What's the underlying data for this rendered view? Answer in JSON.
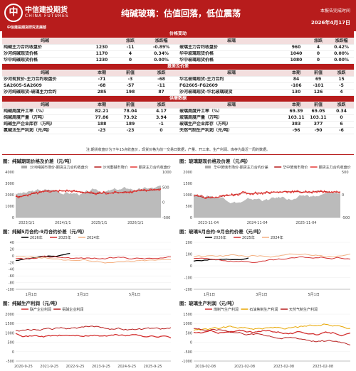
{
  "header": {
    "logo": "中",
    "company": "中信建投期货",
    "company_en": "CHINA FUTURES",
    "subtitle": "中信建投期货研究发展部",
    "title": "纯碱玻璃：估值回落，低位震荡",
    "source": "本报告完成时间",
    "date": "2026年4月17日"
  },
  "sections": [
    "价格变动",
    "基差及价差",
    "供需数据"
  ],
  "price_head": [
    "纯碱",
    "",
    "涨跌",
    "涨跌幅",
    "玻璃",
    "",
    "涨跌",
    "涨跌幅"
  ],
  "price_rows": [
    [
      "纯碱主力合约收盘价",
      "1230",
      "-11",
      "-0.89%",
      "玻璃主力合约收盘价",
      "960",
      "4",
      "0.42%"
    ],
    [
      "沙河纯碱现货价格",
      "1170",
      "4",
      "0.34%",
      "华中玻璃现货价格",
      "1040",
      "0",
      "0.00%"
    ],
    [
      "华中纯碱现货价格",
      "1230",
      "0",
      "0.00%",
      "华中玻璃现货价格",
      "1080",
      "0",
      "0.00%"
    ]
  ],
  "basis_head": [
    "纯碱",
    "本期",
    "前值",
    "涨跌",
    "玻璃",
    "本期",
    "前值",
    "涨跌"
  ],
  "basis_rows": [
    [
      "沙河现货价-主力合约收盘价",
      "-71",
      "-3",
      "-68",
      "华北玻璃现货-主力合约",
      "84",
      "69",
      "15"
    ],
    [
      "SA2605-SA2609",
      "-68",
      "-57",
      "-11",
      "FG2605-FG2609",
      "-106",
      "-101",
      "-5"
    ],
    [
      "沙河纯碱现货-玻璃主力合约",
      "285",
      "198",
      "87",
      "沙河玻璃现货-华北玻璃现货",
      "130",
      "126",
      "4"
    ]
  ],
  "supply_head": [
    "纯碱",
    "本期",
    "前值",
    "涨跌",
    "玻璃",
    "本期",
    "前值",
    "涨跌"
  ],
  "supply_rows": [
    [
      "纯碱周度开工率（%）",
      "82.21",
      "78.04",
      "4.17",
      "玻璃周度开工率（%）",
      "69.39",
      "69.05",
      "0.34"
    ],
    [
      "纯碱周度产量（万吨）",
      "77.86",
      "73.92",
      "3.94",
      "玻璃周度产量（万吨）",
      "103.11",
      "103.11",
      "0"
    ],
    [
      "纯碱生产企业库存（万吨）",
      "188",
      "189",
      "-1",
      "玻璃生产企业库存（万吨）",
      "383",
      "377",
      "6"
    ],
    [
      "氨碱法生产利润（元/吨）",
      "-23",
      "-23",
      "0",
      "天然气制生产利润（元/吨）",
      "-96",
      "-90",
      "-6"
    ]
  ],
  "note": "注:期货收盘价为下午15点收盘价，现货价格为前一交易日数据，产量、开工率、生产利润、库存为最近一周的数据。",
  "chart_titles": [
    "图：纯碱期现价格及价差（元/吨）",
    "图：玻璃期现价格及价差（元/吨）",
    "图：纯碱5月合约-9月合约价差（元/吨）",
    "图：玻璃5月合约-9月合约价差（元/吨）",
    "图：纯碱生产利润（元/吨）",
    "图：玻璃生产利润（元/吨）"
  ],
  "chart_data": [
    {
      "type": "area",
      "legend": [
        "沙河纯碱市场价-期货主力合约收盘价",
        "沙河重碱市场价",
        "期货主力合约收盘价"
      ],
      "x_ticks": [
        "2023/1/1",
        "2024/1/1",
        "2025/1/1",
        "2026/1/1"
      ],
      "y_left": [
        "4000",
        "3000",
        "2000",
        "1000",
        "0"
      ],
      "y_right": [
        "1000",
        "500",
        "0",
        "-500"
      ],
      "colors": [
        "#aaaaaa",
        "#b71c1c",
        "#e53935"
      ]
    },
    {
      "type": "area",
      "legend": [
        "华中玻璃市场价-期货主力合约价差",
        "华中玻璃市场价",
        "期货主力合约收盘价"
      ],
      "x_ticks": [
        "2023-11-04",
        "2024-11-04",
        "2025-11-04"
      ],
      "y_left": [
        "2000",
        "1500",
        "1000",
        "500",
        "0"
      ],
      "y_right": [
        "500",
        "0",
        "-500"
      ],
      "colors": [
        "#aaaaaa",
        "#b71c1c",
        "#e53935"
      ]
    },
    {
      "type": "line",
      "legend": [
        "2026年",
        "2025年",
        "2024年"
      ],
      "x_ticks": [
        "1月1日",
        "3月1日",
        "5月1日"
      ],
      "y": [
        "40",
        "20",
        "0",
        "-20",
        "-40",
        "-60",
        "-80",
        "-100"
      ],
      "colors": [
        "#000000",
        "#d32f2f",
        "#f4b183"
      ]
    },
    {
      "type": "line",
      "legend": [
        "2026年",
        "2025年",
        "2024年"
      ],
      "x_ticks": [
        "1月1日",
        "3月1日",
        "5月1日"
      ],
      "y": [
        "200",
        "100",
        "0",
        "-100",
        "-200"
      ],
      "colors": [
        "#000000",
        "#d32f2f",
        "#f4b183"
      ]
    },
    {
      "type": "line",
      "legend": [
        "联产企业利润",
        "氨碱企业利润"
      ],
      "x_ticks": [
        "2020-9-25",
        "2021-9-25",
        "2022-9-25",
        "2023-9-25",
        "2024-9-25",
        "2025-9-25"
      ],
      "y": [
        "2000",
        "1500",
        "1000",
        "500",
        "0",
        "-500"
      ],
      "colors": [
        "#d32f2f",
        "#b71c1c"
      ]
    },
    {
      "type": "line",
      "legend": [
        "煤制气生产利润",
        "石油焦制生产利润",
        "天然气制生产利润"
      ],
      "x_ticks": [
        "2019-02-08",
        "2021-02-08",
        "2023-02-08",
        "2025-02-08"
      ],
      "y": [
        "1500",
        "1000",
        "500",
        "0",
        "-500",
        "-1000"
      ],
      "colors": [
        "#d32f2f",
        "#e8a600",
        "#b71c1c"
      ]
    }
  ]
}
